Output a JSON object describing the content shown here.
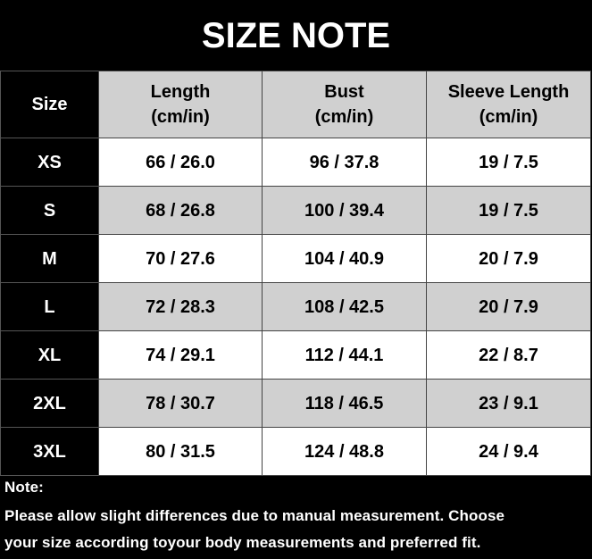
{
  "title": "SIZE NOTE",
  "table": {
    "columns": [
      {
        "label": "Size"
      },
      {
        "label": "Length",
        "unit": "(cm/in)"
      },
      {
        "label": "Bust",
        "unit": "(cm/in)"
      },
      {
        "label": "Sleeve Length",
        "unit": "(cm/in)"
      }
    ],
    "rows": [
      [
        "XS",
        "66 / 26.0",
        "96 / 37.8",
        "19 / 7.5"
      ],
      [
        "S",
        "68 / 26.8",
        "100 / 39.4",
        "19 / 7.5"
      ],
      [
        "M",
        "70 / 27.6",
        "104 / 40.9",
        "20 / 7.9"
      ],
      [
        "L",
        "72 / 28.3",
        "108 / 42.5",
        "20 / 7.9"
      ],
      [
        "XL",
        "74 / 29.1",
        "112 / 44.1",
        "22 / 8.7"
      ],
      [
        "2XL",
        "78 / 30.7",
        "118 / 46.5",
        "23 / 9.1"
      ],
      [
        "3XL",
        "80 / 31.5",
        "124 / 48.8",
        "24 / 9.4"
      ]
    ]
  },
  "note": {
    "label": "Note:",
    "lines": [
      "Please allow slight differences due to manual measurement. Choose",
      "your size according toyour body measurements and preferred fit."
    ]
  }
}
